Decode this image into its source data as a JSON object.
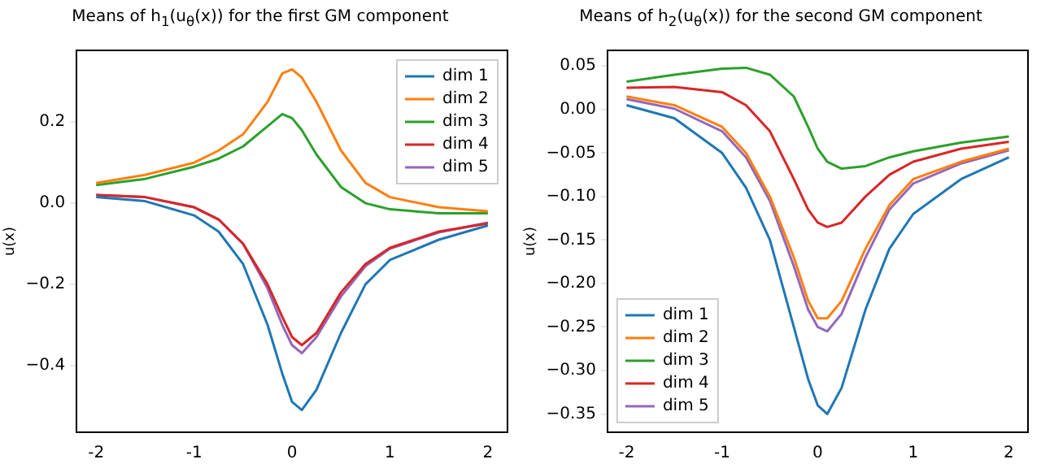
{
  "chart_data": [
    {
      "type": "line",
      "title": "Means of h$_{1}$(u$_{θ}$(x)) for the first GM component",
      "ylabel": "u(x)",
      "x": [
        -2,
        -1.5,
        -1,
        -0.75,
        -0.5,
        -0.25,
        -0.1,
        0,
        0.1,
        0.25,
        0.5,
        0.75,
        1,
        1.5,
        2
      ],
      "series": [
        {
          "name": "dim 1",
          "color": "#1f77b4",
          "values": [
            0.015,
            0.005,
            -0.03,
            -0.07,
            -0.15,
            -0.3,
            -0.42,
            -0.49,
            -0.51,
            -0.46,
            -0.32,
            -0.2,
            -0.14,
            -0.09,
            -0.055
          ]
        },
        {
          "name": "dim 2",
          "color": "#ff7f0e",
          "values": [
            0.05,
            0.07,
            0.1,
            0.13,
            0.17,
            0.25,
            0.32,
            0.33,
            0.31,
            0.25,
            0.13,
            0.05,
            0.015,
            -0.01,
            -0.02
          ]
        },
        {
          "name": "dim 3",
          "color": "#2ca02c",
          "values": [
            0.045,
            0.06,
            0.09,
            0.11,
            0.14,
            0.19,
            0.22,
            0.21,
            0.18,
            0.12,
            0.04,
            0.0,
            -0.015,
            -0.025,
            -0.025
          ]
        },
        {
          "name": "dim 4",
          "color": "#d62728",
          "values": [
            0.02,
            0.015,
            -0.01,
            -0.04,
            -0.1,
            -0.2,
            -0.28,
            -0.33,
            -0.35,
            -0.32,
            -0.22,
            -0.15,
            -0.11,
            -0.07,
            -0.05
          ]
        },
        {
          "name": "dim 5",
          "color": "#9467bd",
          "values": [
            0.02,
            0.015,
            -0.01,
            -0.04,
            -0.1,
            -0.21,
            -0.3,
            -0.35,
            -0.37,
            -0.33,
            -0.23,
            -0.155,
            -0.112,
            -0.072,
            -0.048
          ]
        }
      ],
      "xlim": [
        -2.2,
        2.2
      ],
      "xticks": [
        -2,
        -1,
        0,
        1,
        2
      ],
      "ylim": [
        -0.565,
        0.377
      ],
      "yticks": [
        {
          "value": -0.4,
          "label": "−0.4"
        },
        {
          "value": -0.2,
          "label": "−0.2"
        },
        {
          "value": 0,
          "label": "0.0"
        },
        {
          "value": 0.2,
          "label": "0.2"
        }
      ],
      "legend": "top right",
      "grid": false,
      "marker": "none",
      "line_style": "solid"
    },
    {
      "type": "line",
      "title": "Means of h$_{2}$(u$_{θ}$(x)) for the second GM component",
      "ylabel": "u(x)",
      "x": [
        -2,
        -1.5,
        -1,
        -0.75,
        -0.5,
        -0.25,
        -0.1,
        0,
        0.1,
        0.25,
        0.5,
        0.75,
        1,
        1.5,
        2
      ],
      "series": [
        {
          "name": "dim 1",
          "color": "#1f77b4",
          "values": [
            0.005,
            -0.01,
            -0.05,
            -0.09,
            -0.15,
            -0.25,
            -0.31,
            -0.34,
            -0.35,
            -0.32,
            -0.23,
            -0.16,
            -0.12,
            -0.08,
            -0.055
          ]
        },
        {
          "name": "dim 2",
          "color": "#ff7f0e",
          "values": [
            0.015,
            0.005,
            -0.02,
            -0.05,
            -0.1,
            -0.17,
            -0.22,
            -0.24,
            -0.24,
            -0.22,
            -0.16,
            -0.11,
            -0.08,
            -0.06,
            -0.045
          ]
        },
        {
          "name": "dim 3",
          "color": "#2ca02c",
          "values": [
            0.032,
            0.04,
            0.047,
            0.048,
            0.04,
            0.015,
            -0.02,
            -0.045,
            -0.06,
            -0.068,
            -0.065,
            -0.055,
            -0.048,
            -0.038,
            -0.031
          ]
        },
        {
          "name": "dim 4",
          "color": "#d62728",
          "values": [
            0.025,
            0.026,
            0.02,
            0.005,
            -0.025,
            -0.08,
            -0.115,
            -0.13,
            -0.135,
            -0.13,
            -0.1,
            -0.075,
            -0.06,
            -0.045,
            -0.037
          ]
        },
        {
          "name": "dim 5",
          "color": "#9467bd",
          "values": [
            0.012,
            0.001,
            -0.025,
            -0.055,
            -0.105,
            -0.18,
            -0.23,
            -0.25,
            -0.255,
            -0.235,
            -0.17,
            -0.115,
            -0.085,
            -0.062,
            -0.047
          ]
        }
      ],
      "xlim": [
        -2.2,
        2.2
      ],
      "xticks": [
        -2,
        -1,
        0,
        1,
        2
      ],
      "ylim": [
        -0.371,
        0.068
      ],
      "yticks": [
        {
          "value": -0.35,
          "label": "−0.35"
        },
        {
          "value": -0.3,
          "label": "−0.30"
        },
        {
          "value": -0.25,
          "label": "−0.25"
        },
        {
          "value": -0.2,
          "label": "−0.20"
        },
        {
          "value": -0.15,
          "label": "−0.15"
        },
        {
          "value": -0.1,
          "label": "−0.10"
        },
        {
          "value": -0.05,
          "label": "−0.05"
        },
        {
          "value": 0,
          "label": "0.00"
        },
        {
          "value": 0.05,
          "label": "0.05"
        }
      ],
      "legend": "bottom left",
      "grid": false,
      "marker": "none",
      "line_style": "solid"
    }
  ]
}
